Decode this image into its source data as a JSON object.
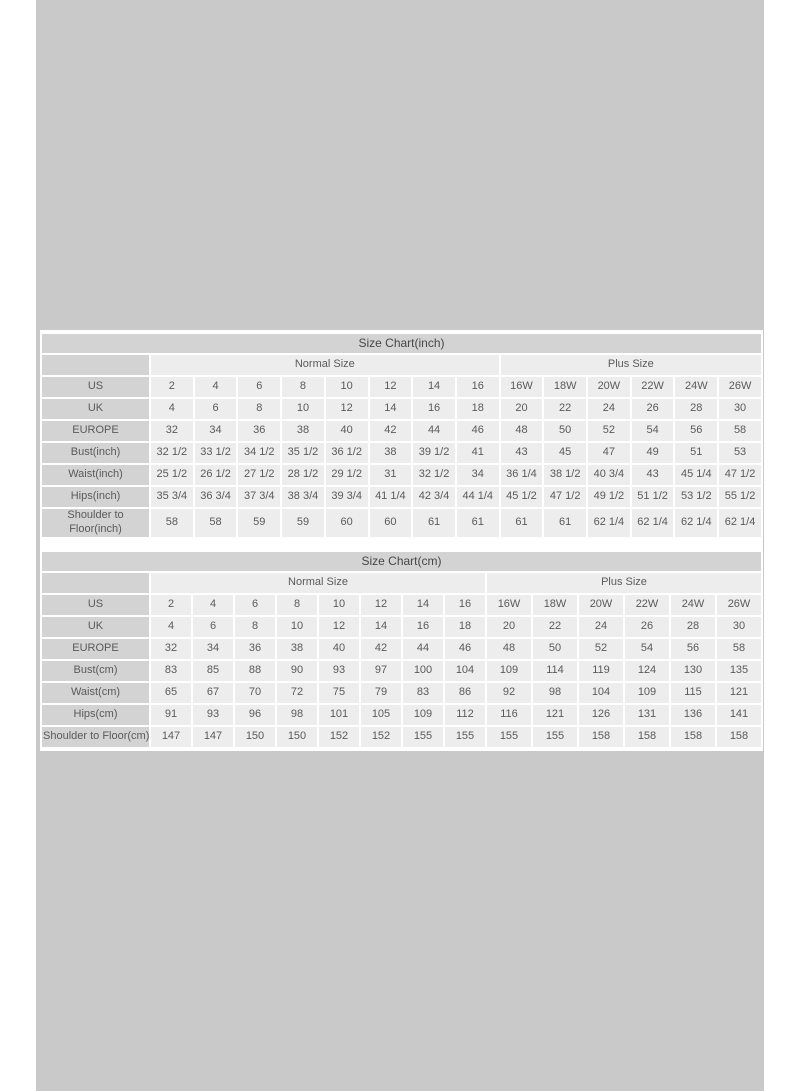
{
  "page": {
    "outer_background": "#ffffff",
    "band_background": "#c9c9c9"
  },
  "colors": {
    "title_bar": "#d3d3d3",
    "label_cell": "#d3d3d3",
    "data_cell": "#ededed",
    "cell_gap": "#ffffff",
    "text": "#5a5a5a"
  },
  "chart_data": [
    {
      "type": "table",
      "title": "Size Chart(inch)",
      "group_headers": [
        {
          "label": "Normal Size",
          "span": 8
        },
        {
          "label": "Plus Size",
          "span": 6
        }
      ],
      "rows": [
        {
          "label": "US",
          "values": [
            "2",
            "4",
            "6",
            "8",
            "10",
            "12",
            "14",
            "16",
            "16W",
            "18W",
            "20W",
            "22W",
            "24W",
            "26W"
          ]
        },
        {
          "label": "UK",
          "values": [
            "4",
            "6",
            "8",
            "10",
            "12",
            "14",
            "16",
            "18",
            "20",
            "22",
            "24",
            "26",
            "28",
            "30"
          ]
        },
        {
          "label": "EUROPE",
          "values": [
            "32",
            "34",
            "36",
            "38",
            "40",
            "42",
            "44",
            "46",
            "48",
            "50",
            "52",
            "54",
            "56",
            "58"
          ]
        },
        {
          "label": "Bust(inch)",
          "values": [
            "32 1/2",
            "33 1/2",
            "34 1/2",
            "35 1/2",
            "36 1/2",
            "38",
            "39 1/2",
            "41",
            "43",
            "45",
            "47",
            "49",
            "51",
            "53"
          ]
        },
        {
          "label": "Waist(inch)",
          "values": [
            "25 1/2",
            "26 1/2",
            "27 1/2",
            "28 1/2",
            "29 1/2",
            "31",
            "32 1/2",
            "34",
            "36 1/4",
            "38 1/2",
            "40 3/4",
            "43",
            "45 1/4",
            "47 1/2"
          ]
        },
        {
          "label": "Hips(inch)",
          "values": [
            "35 3/4",
            "36 3/4",
            "37 3/4",
            "38 3/4",
            "39 3/4",
            "41 1/4",
            "42 3/4",
            "44 1/4",
            "45 1/2",
            "47 1/2",
            "49 1/2",
            "51 1/2",
            "53 1/2",
            "55 1/2"
          ]
        },
        {
          "label": "Shoulder to Floor(inch)",
          "values": [
            "58",
            "58",
            "59",
            "59",
            "60",
            "60",
            "61",
            "61",
            "61",
            "61",
            "62 1/4",
            "62 1/4",
            "62 1/4",
            "62 1/4"
          ]
        }
      ]
    },
    {
      "type": "table",
      "title": "Size Chart(cm)",
      "group_headers": [
        {
          "label": "Normal Size",
          "span": 8
        },
        {
          "label": "Plus Size",
          "span": 6
        }
      ],
      "rows": [
        {
          "label": "US",
          "values": [
            "2",
            "4",
            "6",
            "8",
            "10",
            "12",
            "14",
            "16",
            "16W",
            "18W",
            "20W",
            "22W",
            "24W",
            "26W"
          ]
        },
        {
          "label": "UK",
          "values": [
            "4",
            "6",
            "8",
            "10",
            "12",
            "14",
            "16",
            "18",
            "20",
            "22",
            "24",
            "26",
            "28",
            "30"
          ]
        },
        {
          "label": "EUROPE",
          "values": [
            "32",
            "34",
            "36",
            "38",
            "40",
            "42",
            "44",
            "46",
            "48",
            "50",
            "52",
            "54",
            "56",
            "58"
          ]
        },
        {
          "label": "Bust(cm)",
          "values": [
            "83",
            "85",
            "88",
            "90",
            "93",
            "97",
            "100",
            "104",
            "109",
            "114",
            "119",
            "124",
            "130",
            "135"
          ]
        },
        {
          "label": "Waist(cm)",
          "values": [
            "65",
            "67",
            "70",
            "72",
            "75",
            "79",
            "83",
            "86",
            "92",
            "98",
            "104",
            "109",
            "115",
            "121"
          ]
        },
        {
          "label": "Hips(cm)",
          "values": [
            "91",
            "93",
            "96",
            "98",
            "101",
            "105",
            "109",
            "112",
            "116",
            "121",
            "126",
            "131",
            "136",
            "141"
          ]
        },
        {
          "label": "Shoulder to Floor(cm)",
          "values": [
            "147",
            "147",
            "150",
            "150",
            "152",
            "152",
            "155",
            "155",
            "155",
            "155",
            "158",
            "158",
            "158",
            "158"
          ]
        }
      ]
    }
  ]
}
